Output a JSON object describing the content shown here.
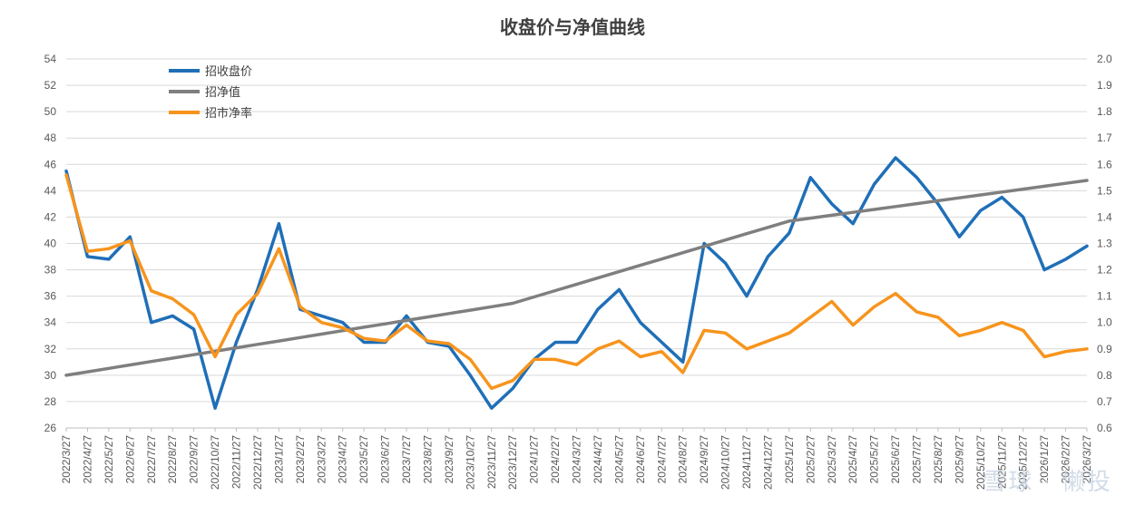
{
  "chart_data": {
    "type": "line",
    "title": "收盘价与净值曲线",
    "x": [
      "2022/3/27",
      "2022/4/27",
      "2022/5/27",
      "2022/6/27",
      "2022/7/27",
      "2022/8/27",
      "2022/9/27",
      "2022/10/27",
      "2022/11/27",
      "2022/12/27",
      "2023/1/27",
      "2023/2/27",
      "2023/3/27",
      "2023/4/27",
      "2023/5/27",
      "2023/6/27",
      "2023/7/27",
      "2023/8/27",
      "2023/9/27",
      "2023/10/27",
      "2023/11/27",
      "2023/12/27",
      "2024/1/27",
      "2024/2/27",
      "2024/3/27",
      "2024/4/27",
      "2024/5/27",
      "2024/6/27",
      "2024/7/27",
      "2024/8/27",
      "2024/9/27",
      "2024/10/27",
      "2024/11/27",
      "2024/12/27",
      "2025/1/27",
      "2025/2/27",
      "2025/3/27",
      "2025/4/27",
      "2025/5/27",
      "2025/6/27",
      "2025/7/27",
      "2025/8/27",
      "2025/9/27",
      "2025/10/27",
      "2025/11/27",
      "2025/12/27",
      "2026/1/27",
      "2026/2/27",
      "2026/3/27"
    ],
    "y_left_ticks": [
      "26",
      "28",
      "30",
      "32",
      "34",
      "36",
      "38",
      "40",
      "42",
      "44",
      "46",
      "48",
      "50",
      "52",
      "54"
    ],
    "y_right_ticks": [
      "0.6",
      "0.7",
      "0.8",
      "0.9",
      "1.0",
      "1.1",
      "1.2",
      "1.3",
      "1.4",
      "1.5",
      "1.6",
      "1.7",
      "1.8",
      "1.9",
      "2.0"
    ],
    "y_left_lim": [
      26,
      54
    ],
    "y_right_lim": [
      0.6,
      2.0
    ],
    "legend_position": "top-left",
    "series": [
      {
        "name": "招收盘价",
        "axis": "left",
        "color": "#1f6fb7",
        "values": [
          45.5,
          39,
          38.8,
          40.5,
          34,
          34.5,
          33.5,
          27.5,
          32.5,
          36.5,
          41.5,
          35,
          34.5,
          34,
          32.5,
          32.5,
          34.5,
          32.5,
          32.2,
          30,
          27.5,
          29,
          31.2,
          32.5,
          32.5,
          35,
          36.5,
          34,
          32.5,
          31,
          40,
          38.5,
          36,
          39,
          40.8,
          45,
          43,
          41.5,
          44.5,
          46.5,
          45,
          43,
          40.5,
          42.5,
          43.5,
          42,
          38,
          38.8,
          39.8
        ]
      },
      {
        "name": "招净值",
        "axis": "right",
        "color": "#7f7f7f",
        "values": [
          0.8,
          0.813,
          0.826,
          0.839,
          0.852,
          0.865,
          0.878,
          0.891,
          0.904,
          0.917,
          0.93,
          0.943,
          0.956,
          0.969,
          0.982,
          0.995,
          1.008,
          1.021,
          1.034,
          1.047,
          1.06,
          1.073,
          1.097,
          1.121,
          1.145,
          1.169,
          1.193,
          1.217,
          1.241,
          1.265,
          1.289,
          1.313,
          1.337,
          1.361,
          1.385,
          1.396,
          1.407,
          1.418,
          1.429,
          1.44,
          1.451,
          1.462,
          1.473,
          1.484,
          1.495,
          1.506,
          1.517,
          1.528,
          1.539
        ]
      },
      {
        "name": "招市净率",
        "axis": "right",
        "color": "#f7941d",
        "values": [
          1.56,
          1.27,
          1.28,
          1.31,
          1.12,
          1.09,
          1.03,
          0.87,
          1.03,
          1.11,
          1.28,
          1.06,
          1.0,
          0.98,
          0.94,
          0.93,
          0.99,
          0.93,
          0.92,
          0.86,
          0.75,
          0.78,
          0.86,
          0.86,
          0.84,
          0.9,
          0.93,
          0.87,
          0.89,
          0.81,
          0.97,
          0.96,
          0.9,
          0.93,
          0.96,
          1.02,
          1.08,
          0.99,
          1.06,
          1.11,
          1.04,
          1.02,
          0.95,
          0.97,
          1.0,
          0.97,
          0.87,
          0.89,
          0.9
        ]
      }
    ]
  }
}
